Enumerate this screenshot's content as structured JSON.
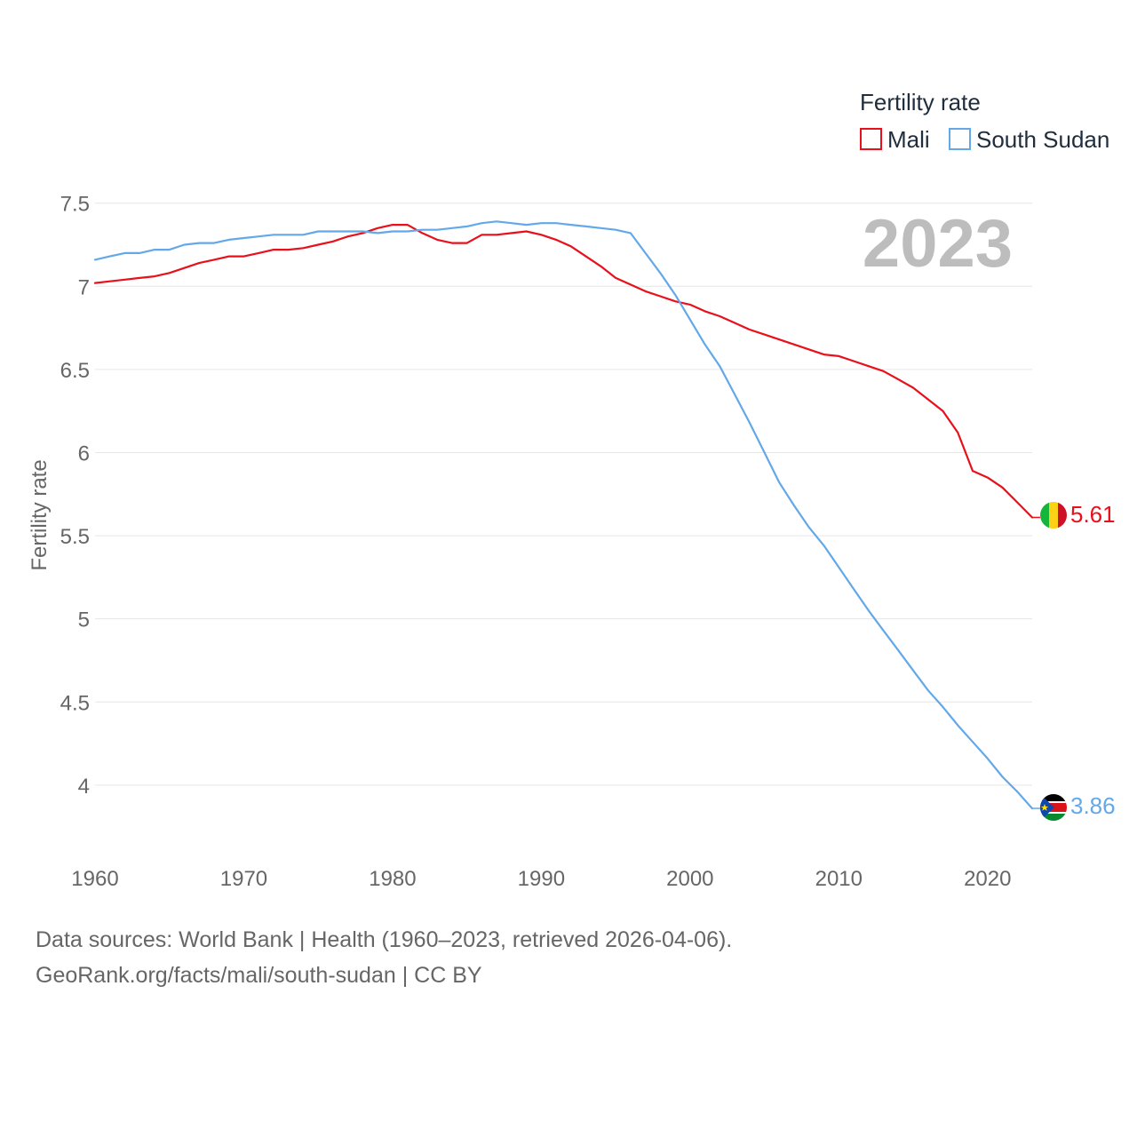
{
  "chart_data": {
    "type": "line",
    "title": "Fertility rate",
    "year_label": "2023",
    "ylabel": "Fertility rate",
    "xlabel": "",
    "xlim": [
      1960,
      2023
    ],
    "ylim": [
      3.7,
      7.6
    ],
    "x_ticks": [
      1960,
      1970,
      1980,
      1990,
      2000,
      2010,
      2020
    ],
    "y_ticks": [
      {
        "value": 4,
        "label": "4"
      },
      {
        "value": 4.5,
        "label": "4.5"
      },
      {
        "value": 5,
        "label": "5"
      },
      {
        "value": 5.5,
        "label": "5.5"
      },
      {
        "value": 6,
        "label": "6"
      },
      {
        "value": 6.5,
        "label": "6.5"
      },
      {
        "value": 7,
        "label": "7"
      },
      {
        "value": 7.5,
        "label": "7.5"
      }
    ],
    "grid": true,
    "legend": "top-right",
    "x": [
      1960,
      1961,
      1962,
      1963,
      1964,
      1965,
      1966,
      1967,
      1968,
      1969,
      1970,
      1971,
      1972,
      1973,
      1974,
      1975,
      1976,
      1977,
      1978,
      1979,
      1980,
      1981,
      1982,
      1983,
      1984,
      1985,
      1986,
      1987,
      1988,
      1989,
      1990,
      1991,
      1992,
      1993,
      1994,
      1995,
      1996,
      1997,
      1998,
      1999,
      2000,
      2001,
      2002,
      2003,
      2004,
      2005,
      2006,
      2007,
      2008,
      2009,
      2010,
      2011,
      2012,
      2013,
      2014,
      2015,
      2016,
      2017,
      2018,
      2019,
      2020,
      2021,
      2022,
      2023
    ],
    "series": [
      {
        "name": "Mali",
        "color": "#e8101a",
        "end_label": "5.61",
        "values": [
          7.02,
          7.03,
          7.04,
          7.05,
          7.06,
          7.08,
          7.11,
          7.14,
          7.16,
          7.18,
          7.18,
          7.2,
          7.22,
          7.22,
          7.23,
          7.25,
          7.27,
          7.3,
          7.32,
          7.35,
          7.37,
          7.37,
          7.32,
          7.28,
          7.26,
          7.26,
          7.31,
          7.31,
          7.32,
          7.33,
          7.31,
          7.28,
          7.24,
          7.18,
          7.12,
          7.05,
          7.01,
          6.97,
          6.94,
          6.91,
          6.89,
          6.85,
          6.82,
          6.78,
          6.74,
          6.71,
          6.68,
          6.65,
          6.62,
          6.59,
          6.58,
          6.55,
          6.52,
          6.49,
          6.44,
          6.39,
          6.32,
          6.25,
          6.12,
          5.89,
          5.85,
          5.79,
          5.7,
          5.61
        ]
      },
      {
        "name": "South Sudan",
        "color": "#63a8e8",
        "end_label": "3.86",
        "values": [
          7.16,
          7.18,
          7.2,
          7.2,
          7.22,
          7.22,
          7.25,
          7.26,
          7.26,
          7.28,
          7.29,
          7.3,
          7.31,
          7.31,
          7.31,
          7.33,
          7.33,
          7.33,
          7.33,
          7.32,
          7.33,
          7.33,
          7.34,
          7.34,
          7.35,
          7.36,
          7.38,
          7.39,
          7.38,
          7.37,
          7.38,
          7.38,
          7.37,
          7.36,
          7.35,
          7.34,
          7.32,
          7.2,
          7.08,
          6.95,
          6.8,
          6.65,
          6.52,
          6.35,
          6.18,
          6.0,
          5.82,
          5.68,
          5.55,
          5.44,
          5.31,
          5.18,
          5.05,
          4.93,
          4.81,
          4.69,
          4.57,
          4.47,
          4.36,
          4.26,
          4.16,
          4.05,
          3.96,
          3.86
        ]
      }
    ]
  },
  "footer": {
    "source": "Data sources: World Bank | Health (1960–2023, retrieved 2026-04-06).",
    "credit": "GeoRank.org/facts/mali/south-sudan | CC BY"
  }
}
